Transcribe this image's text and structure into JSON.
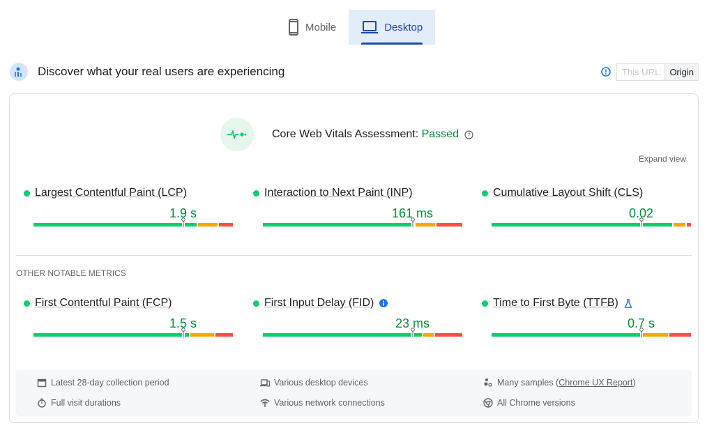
{
  "tabs": [
    {
      "label": "Mobile",
      "icon": "phone-icon",
      "active": false
    },
    {
      "label": "Desktop",
      "icon": "laptop-icon",
      "active": true
    }
  ],
  "header": {
    "title": "Discover what your real users are experiencing",
    "toggle": {
      "this_url": "This URL",
      "origin": "Origin",
      "selected": "Origin"
    }
  },
  "assessment": {
    "label": "Core Web Vitals Assessment: ",
    "status": "Passed",
    "expand": "Expand view"
  },
  "core_metrics": [
    {
      "name": "Largest Contentful Paint (LCP)",
      "value": "1.9 s",
      "dist": [
        83,
        10,
        7
      ]
    },
    {
      "name": "Interaction to Next Paint (INP)",
      "value": "161 ms",
      "dist": [
        77,
        10,
        13
      ]
    },
    {
      "name": "Cumulative Layout Shift (CLS)",
      "value": "0.02",
      "dist": [
        92,
        6,
        2
      ]
    }
  ],
  "other_title": "OTHER NOTABLE METRICS",
  "other_metrics": [
    {
      "name": "First Contentful Paint (FCP)",
      "value": "1.5 s",
      "dist": [
        79,
        12,
        9
      ]
    },
    {
      "name": "First Input Delay (FID)",
      "value": "23 ms",
      "dist": [
        81,
        5,
        14
      ]
    },
    {
      "name": "Time to First Byte (TTFB)",
      "value": "0.7 s",
      "dist": [
        76,
        13,
        11
      ]
    }
  ],
  "footer": {
    "period": "Latest 28-day collection period",
    "devices": "Various desktop devices",
    "samples": "Many samples (",
    "samples_link": "Chrome UX Report",
    "samples_end": ")",
    "durations": "Full visit durations",
    "network": "Various network connections",
    "versions": "All Chrome versions"
  },
  "colors": {
    "good": "#0cce6b",
    "ni": "#ffa400",
    "poor": "#ff4e42",
    "accent": "#1a4aa8"
  }
}
